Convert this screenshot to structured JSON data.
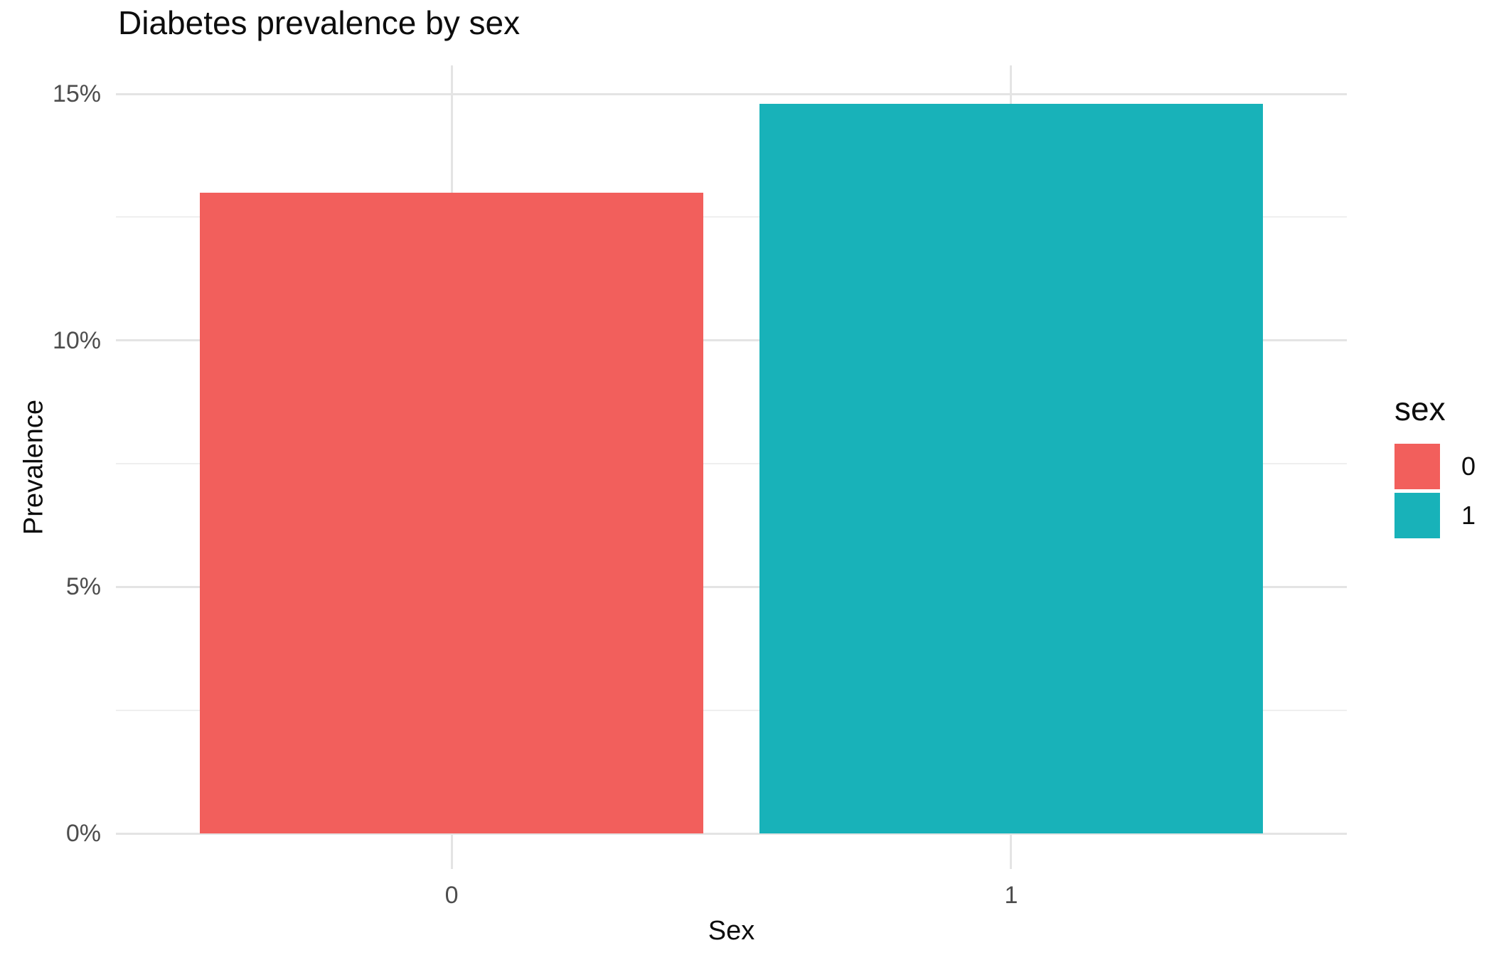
{
  "title": "Diabetes prevalence by sex",
  "chart_data": {
    "type": "bar",
    "title": "Diabetes prevalence by sex",
    "xlabel": "Sex",
    "ylabel": "Prevalence",
    "categories": [
      "0",
      "1"
    ],
    "values": [
      13.0,
      14.8
    ],
    "value_unit": "percent",
    "series_name": "sex",
    "x_tick_labels": [
      "0",
      "1"
    ],
    "y_tick_labels": [
      "0%",
      "5%",
      "10%",
      "15%"
    ],
    "y_tick_values": [
      0,
      5,
      10,
      15
    ],
    "y_minor_tick_values": [
      2.5,
      7.5,
      12.5
    ],
    "ylim": [
      0,
      15.6
    ],
    "bar_relative_width": 0.9,
    "grid": "horizontal major and minor, vertical major at category centers; no axis lines, no tick marks",
    "legend_position": "right",
    "legend": {
      "title": "sex",
      "entries": [
        {
          "label": "0",
          "color": "#F25F5C"
        },
        {
          "label": "1",
          "color": "#18B2B9"
        }
      ]
    },
    "colors": {
      "bar_category_0": "#F25F5C",
      "bar_category_1": "#18B2B9",
      "grid_major": "#E4E4E4",
      "grid_minor": "#EFEFEF",
      "tick_text": "#4D4D4D",
      "title_text": "#0D0D0D",
      "background": "#FFFFFF"
    }
  }
}
